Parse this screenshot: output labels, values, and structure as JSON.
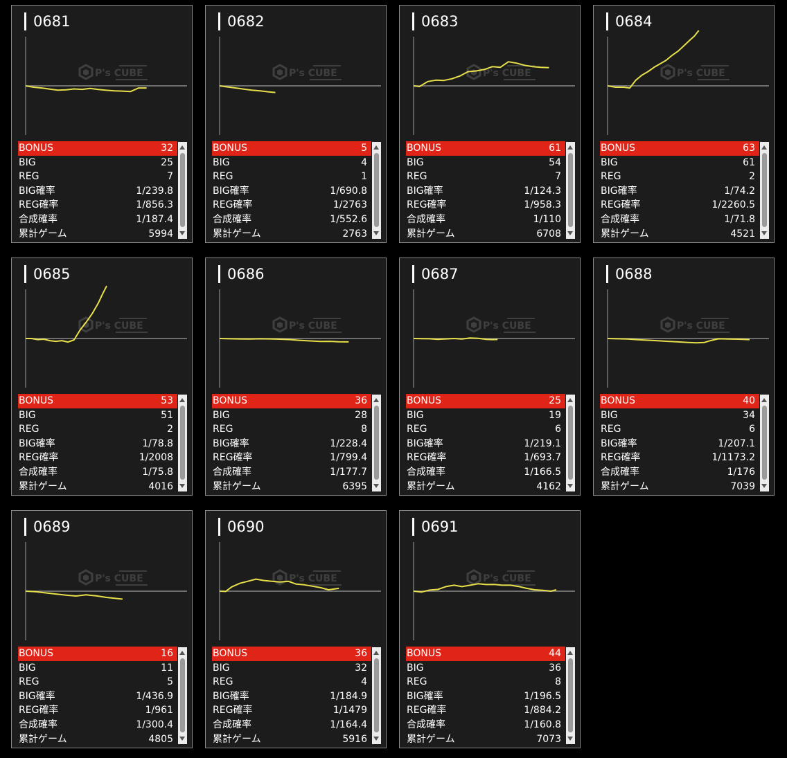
{
  "labels": {
    "bonus": "BONUS",
    "big": "BIG",
    "reg": "REG",
    "big_rate": "BIG確率",
    "reg_rate": "REG確率",
    "combined_rate": "合成確率",
    "total_games": "累計ゲーム"
  },
  "colors": {
    "background": "#000000",
    "card": "#1c1c1c",
    "bonus_row": "#e02418",
    "graph_line": "#e8e04a",
    "baseline": "#8a8a8a"
  },
  "watermark": {
    "logo": "P's CUBE"
  },
  "machines": [
    {
      "id": "0681",
      "bonus": "32",
      "big": "25",
      "reg": "7",
      "big_rate": "1/239.8",
      "reg_rate": "1/856.3",
      "combined_rate": "1/187.4",
      "total_games": "5994",
      "trend": [
        [
          0,
          0
        ],
        [
          400,
          -100
        ],
        [
          800,
          -150
        ],
        [
          1200,
          -230
        ],
        [
          1600,
          -300
        ],
        [
          2000,
          -280
        ],
        [
          2400,
          -220
        ],
        [
          2800,
          -250
        ],
        [
          3200,
          -180
        ],
        [
          3600,
          -260
        ],
        [
          4000,
          -310
        ],
        [
          4400,
          -350
        ],
        [
          4800,
          -370
        ],
        [
          5200,
          -400
        ],
        [
          5600,
          -150
        ],
        [
          5994,
          -150
        ]
      ]
    },
    {
      "id": "0682",
      "bonus": "5",
      "big": "4",
      "reg": "1",
      "big_rate": "1/690.8",
      "reg_rate": "1/2763",
      "combined_rate": "1/552.6",
      "total_games": "2763",
      "trend": [
        [
          0,
          0
        ],
        [
          400,
          -80
        ],
        [
          800,
          -150
        ],
        [
          1200,
          -230
        ],
        [
          1600,
          -300
        ],
        [
          2000,
          -350
        ],
        [
          2400,
          -420
        ],
        [
          2763,
          -470
        ]
      ]
    },
    {
      "id": "0683",
      "bonus": "61",
      "big": "54",
      "reg": "7",
      "big_rate": "1/124.3",
      "reg_rate": "1/958.3",
      "combined_rate": "1/110",
      "total_games": "6708",
      "trend": [
        [
          0,
          0
        ],
        [
          300,
          -50
        ],
        [
          700,
          300
        ],
        [
          1100,
          400
        ],
        [
          1500,
          380
        ],
        [
          1900,
          500
        ],
        [
          2300,
          700
        ],
        [
          2700,
          1000
        ],
        [
          3100,
          1050
        ],
        [
          3500,
          1150
        ],
        [
          3900,
          1350
        ],
        [
          4300,
          1300
        ],
        [
          4700,
          1700
        ],
        [
          5100,
          1600
        ],
        [
          5500,
          1450
        ],
        [
          5900,
          1350
        ],
        [
          6300,
          1300
        ],
        [
          6708,
          1280
        ]
      ]
    },
    {
      "id": "0684",
      "bonus": "63",
      "big": "61",
      "reg": "2",
      "big_rate": "1/74.2",
      "reg_rate": "1/2260.5",
      "combined_rate": "1/71.8",
      "total_games": "4521",
      "trend": [
        [
          0,
          0
        ],
        [
          400,
          -100
        ],
        [
          800,
          -100
        ],
        [
          1100,
          -150
        ],
        [
          1400,
          400
        ],
        [
          1700,
          750
        ],
        [
          2000,
          1000
        ],
        [
          2300,
          1300
        ],
        [
          2600,
          1550
        ],
        [
          2900,
          1800
        ],
        [
          3200,
          2150
        ],
        [
          3500,
          2450
        ],
        [
          3800,
          2850
        ],
        [
          4100,
          3250
        ],
        [
          4300,
          3500
        ],
        [
          4521,
          3900
        ]
      ]
    },
    {
      "id": "0685",
      "bonus": "53",
      "big": "51",
      "reg": "2",
      "big_rate": "1/78.8",
      "reg_rate": "1/2008",
      "combined_rate": "1/75.8",
      "total_games": "4016",
      "trend": [
        [
          0,
          0
        ],
        [
          300,
          0
        ],
        [
          600,
          -80
        ],
        [
          900,
          -50
        ],
        [
          1200,
          -150
        ],
        [
          1500,
          -200
        ],
        [
          1800,
          -150
        ],
        [
          2100,
          -250
        ],
        [
          2400,
          -100
        ],
        [
          2700,
          600
        ],
        [
          3000,
          1150
        ],
        [
          3300,
          1750
        ],
        [
          3600,
          2500
        ],
        [
          3800,
          3100
        ],
        [
          4016,
          3700
        ]
      ]
    },
    {
      "id": "0686",
      "bonus": "36",
      "big": "28",
      "reg": "8",
      "big_rate": "1/228.4",
      "reg_rate": "1/799.4",
      "combined_rate": "1/177.7",
      "total_games": "6395",
      "trend": [
        [
          0,
          0
        ],
        [
          500,
          -20
        ],
        [
          1000,
          -30
        ],
        [
          1500,
          -40
        ],
        [
          2000,
          -20
        ],
        [
          2500,
          -30
        ],
        [
          3000,
          -50
        ],
        [
          3500,
          -80
        ],
        [
          4000,
          -130
        ],
        [
          4500,
          -170
        ],
        [
          5000,
          -210
        ],
        [
          5500,
          -200
        ],
        [
          5900,
          -230
        ],
        [
          6395,
          -240
        ]
      ]
    },
    {
      "id": "0687",
      "bonus": "25",
      "big": "19",
      "reg": "6",
      "big_rate": "1/219.1",
      "reg_rate": "1/693.7",
      "combined_rate": "1/166.5",
      "total_games": "4162",
      "trend": [
        [
          0,
          0
        ],
        [
          400,
          -10
        ],
        [
          800,
          -20
        ],
        [
          1200,
          -60
        ],
        [
          1600,
          -30
        ],
        [
          2000,
          0
        ],
        [
          2400,
          -40
        ],
        [
          2800,
          40
        ],
        [
          3200,
          10
        ],
        [
          3600,
          -60
        ],
        [
          3900,
          -80
        ],
        [
          4162,
          -70
        ]
      ]
    },
    {
      "id": "0688",
      "bonus": "40",
      "big": "34",
      "reg": "6",
      "big_rate": "1/207.1",
      "reg_rate": "1/1173.2",
      "combined_rate": "1/176",
      "total_games": "7039",
      "trend": [
        [
          0,
          0
        ],
        [
          500,
          -20
        ],
        [
          1000,
          -40
        ],
        [
          1500,
          -90
        ],
        [
          2000,
          -120
        ],
        [
          2500,
          -160
        ],
        [
          3000,
          -200
        ],
        [
          3500,
          -240
        ],
        [
          4000,
          -280
        ],
        [
          4400,
          -300
        ],
        [
          4800,
          -280
        ],
        [
          5100,
          -150
        ],
        [
          5500,
          -20
        ],
        [
          6000,
          -40
        ],
        [
          6500,
          -50
        ],
        [
          7039,
          -80
        ]
      ]
    },
    {
      "id": "0689",
      "bonus": "16",
      "big": "11",
      "reg": "5",
      "big_rate": "1/436.9",
      "reg_rate": "1/961",
      "combined_rate": "1/300.4",
      "total_games": "4805",
      "trend": [
        [
          0,
          0
        ],
        [
          500,
          -40
        ],
        [
          1000,
          -120
        ],
        [
          1500,
          -200
        ],
        [
          2000,
          -280
        ],
        [
          2500,
          -340
        ],
        [
          3000,
          -260
        ],
        [
          3500,
          -330
        ],
        [
          4000,
          -440
        ],
        [
          4400,
          -500
        ],
        [
          4805,
          -560
        ]
      ]
    },
    {
      "id": "0690",
      "bonus": "36",
      "big": "32",
      "reg": "4",
      "big_rate": "1/184.9",
      "reg_rate": "1/1479",
      "combined_rate": "1/164.4",
      "total_games": "5916",
      "trend": [
        [
          0,
          0
        ],
        [
          300,
          -20
        ],
        [
          600,
          300
        ],
        [
          1000,
          550
        ],
        [
          1400,
          700
        ],
        [
          1800,
          850
        ],
        [
          2200,
          750
        ],
        [
          2600,
          700
        ],
        [
          3000,
          650
        ],
        [
          3400,
          700
        ],
        [
          3800,
          500
        ],
        [
          4200,
          450
        ],
        [
          4600,
          350
        ],
        [
          5000,
          250
        ],
        [
          5400,
          100
        ],
        [
          5916,
          200
        ]
      ]
    },
    {
      "id": "0691",
      "bonus": "44",
      "big": "36",
      "reg": "8",
      "big_rate": "1/196.5",
      "reg_rate": "1/884.2",
      "combined_rate": "1/160.8",
      "total_games": "7073",
      "trend": [
        [
          0,
          0
        ],
        [
          400,
          -60
        ],
        [
          800,
          80
        ],
        [
          1200,
          120
        ],
        [
          1600,
          320
        ],
        [
          2000,
          420
        ],
        [
          2400,
          320
        ],
        [
          2800,
          420
        ],
        [
          3200,
          520
        ],
        [
          3600,
          470
        ],
        [
          4000,
          480
        ],
        [
          4400,
          420
        ],
        [
          4800,
          420
        ],
        [
          5200,
          330
        ],
        [
          5600,
          200
        ],
        [
          6000,
          100
        ],
        [
          6400,
          60
        ],
        [
          6800,
          0
        ],
        [
          7073,
          100
        ]
      ]
    }
  ]
}
